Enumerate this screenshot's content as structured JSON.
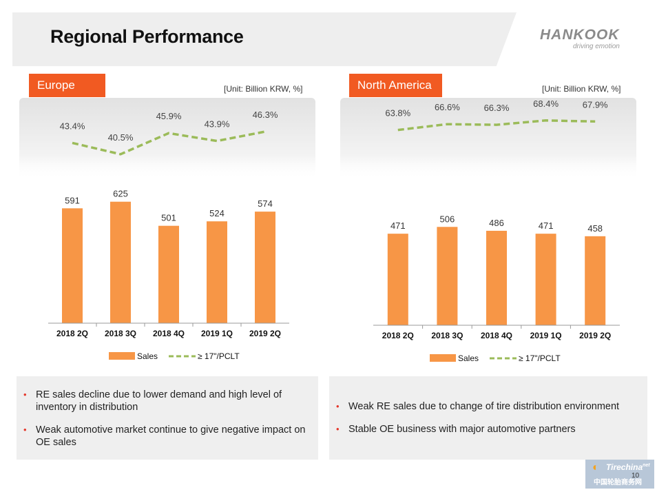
{
  "page_title": "Regional Performance",
  "logo": {
    "wordmark": "HANKOOK",
    "tagline": "driving emotion"
  },
  "page_number": "10",
  "watermark": {
    "brand": "Tirechina",
    "brand_suffix": "net",
    "chinese": "中国轮胎商务网"
  },
  "colors": {
    "accent": "#f15a22",
    "bar": "#f79646",
    "line": "#9bbb59",
    "panel": "#eeeeee"
  },
  "chart_data": [
    {
      "type": "bar",
      "region": "Europe",
      "unit_label": "[Unit: Billion KRW, %]",
      "categories": [
        "2018 2Q",
        "2018 3Q",
        "2018 4Q",
        "2019 1Q",
        "2019 2Q"
      ],
      "series": [
        {
          "name": "Sales",
          "type": "bar",
          "values": [
            591,
            625,
            501,
            524,
            574
          ],
          "labels": [
            "591",
            "625",
            "501",
            "524",
            "574"
          ]
        },
        {
          "name": "≥ 17\"/PCLT",
          "type": "line",
          "values": [
            43.4,
            40.5,
            45.9,
            43.9,
            46.3
          ],
          "labels": [
            "43.4%",
            "40.5%",
            "45.9%",
            "43.9%",
            "46.3%"
          ]
        }
      ],
      "legend": [
        "Sales",
        "≥ 17\"/PCLT"
      ],
      "ylim_bar": [
        0,
        780
      ],
      "ylim_line": [
        35,
        50
      ]
    },
    {
      "type": "bar",
      "region": "North America",
      "unit_label": "[Unit: Billion KRW, %]",
      "categories": [
        "2018 2Q",
        "2018 3Q",
        "2018 4Q",
        "2019 1Q",
        "2019 2Q"
      ],
      "series": [
        {
          "name": "Sales",
          "type": "bar",
          "values": [
            471,
            506,
            486,
            471,
            458
          ],
          "labels": [
            "471",
            "506",
            "486",
            "471",
            "458"
          ]
        },
        {
          "name": "≥ 17\"/PCLT",
          "type": "line",
          "values": [
            63.8,
            66.6,
            66.3,
            68.4,
            67.9
          ],
          "labels": [
            "63.8%",
            "66.6%",
            "66.3%",
            "68.4%",
            "67.9%"
          ]
        }
      ],
      "legend": [
        "Sales",
        "≥ 17\"/PCLT"
      ],
      "ylim_bar": [
        0,
        780
      ],
      "ylim_line": [
        55,
        80
      ]
    }
  ],
  "bullets": {
    "europe": [
      "RE sales decline due to lower demand and high level of inventory in distribution",
      "Weak automotive market continue to give negative impact on OE sales"
    ],
    "north_america": [
      "Weak RE sales due to change of tire distribution environment",
      "Stable OE business with major automotive partners"
    ]
  }
}
